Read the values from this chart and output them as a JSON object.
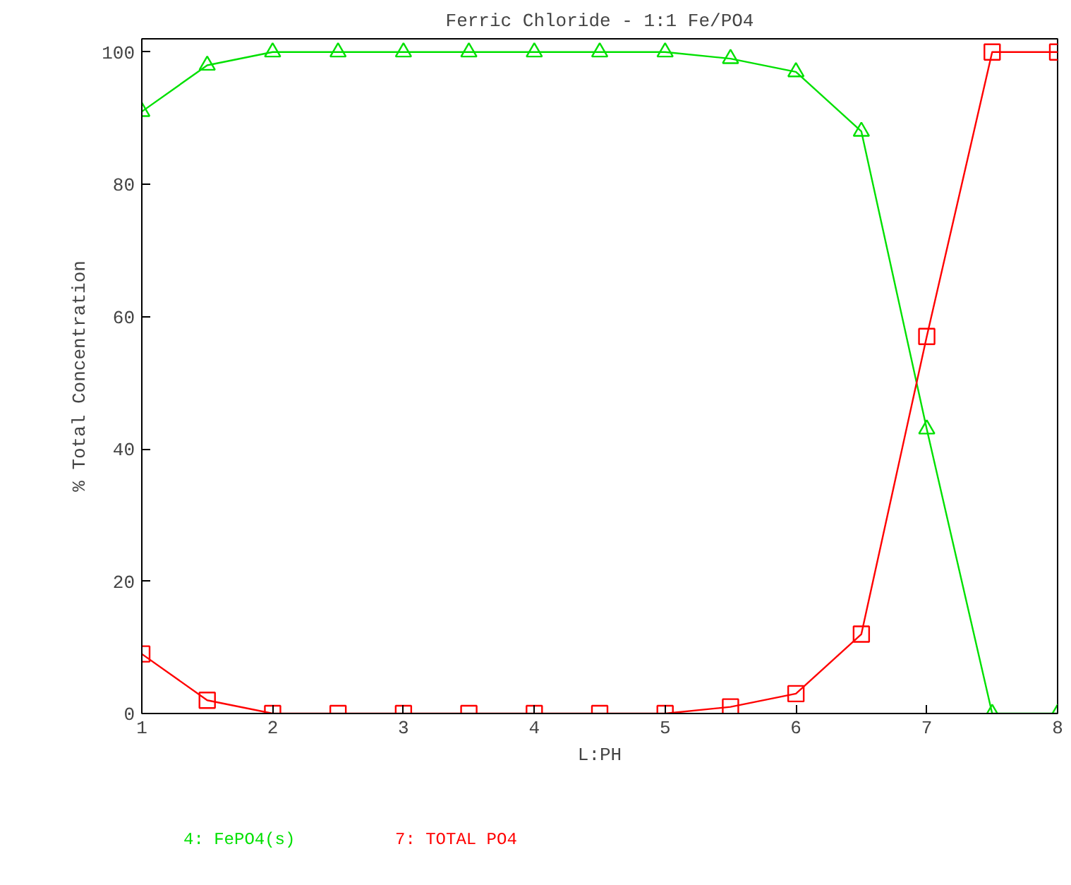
{
  "chart_data": {
    "type": "line",
    "title": "Ferric Chloride - 1:1 Fe/PO4",
    "xlabel": "L:PH",
    "ylabel": "% Total Concentration",
    "x": [
      1,
      1.5,
      2,
      2.5,
      3,
      3.5,
      4,
      4.5,
      5,
      5.5,
      6,
      6.5,
      7,
      7.5,
      8
    ],
    "series": [
      {
        "name": "4: FePO4(s)",
        "color": "#00e000",
        "marker": "triangle",
        "values": [
          91,
          98,
          100,
          100,
          100,
          100,
          100,
          100,
          100,
          99,
          97,
          88,
          43,
          0,
          0
        ]
      },
      {
        "name": "7: TOTAL PO4",
        "color": "#ff0000",
        "marker": "square",
        "values": [
          9,
          2,
          0,
          0,
          0,
          0,
          0,
          0,
          0,
          1,
          3,
          12,
          57,
          100,
          100
        ]
      }
    ],
    "xlim": [
      1,
      8
    ],
    "xticks": [
      1,
      2,
      3,
      4,
      5,
      6,
      7,
      8
    ],
    "ylim": [
      0,
      102
    ],
    "yticks": [
      0,
      20,
      40,
      60,
      80,
      100
    ],
    "grid": false,
    "legend": "bottom",
    "line_style": "solid"
  }
}
